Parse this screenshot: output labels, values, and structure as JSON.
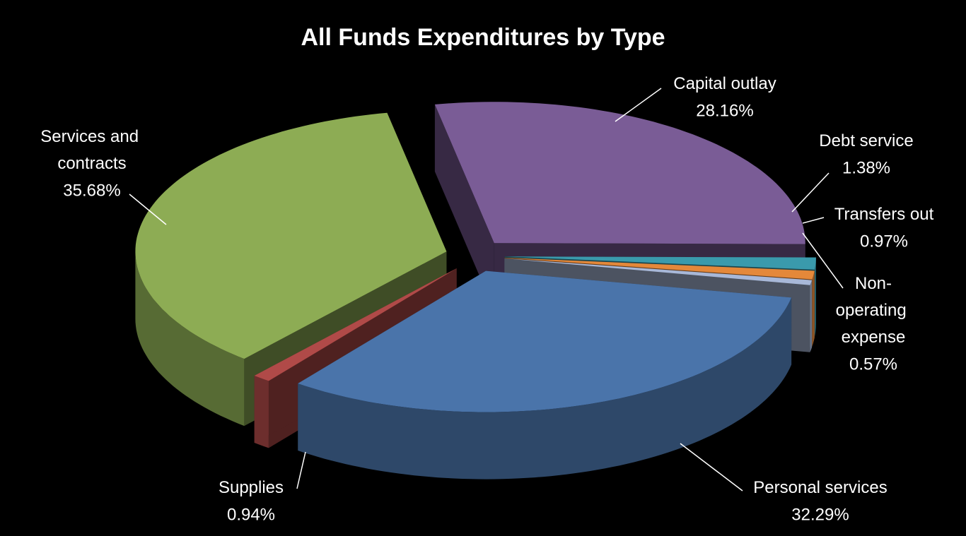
{
  "chart_data": {
    "type": "pie",
    "title": "All Funds Expenditures by Type",
    "categories": [
      "Capital outlay",
      "Debt service",
      "Transfers out",
      "Non-operating expense",
      "Personal services",
      "Supplies",
      "Services and contracts"
    ],
    "values": [
      28.16,
      1.38,
      0.97,
      0.57,
      32.29,
      0.94,
      35.68
    ],
    "value_labels": [
      "28.16%",
      "1.38%",
      "0.97%",
      "0.57%",
      "32.29%",
      "0.94%",
      "35.68%"
    ],
    "colors": [
      "#7a5c96",
      "#3a9aac",
      "#e4883a",
      "#a8b8d8",
      "#4a74aa",
      "#b04a48",
      "#8dac54"
    ]
  }
}
